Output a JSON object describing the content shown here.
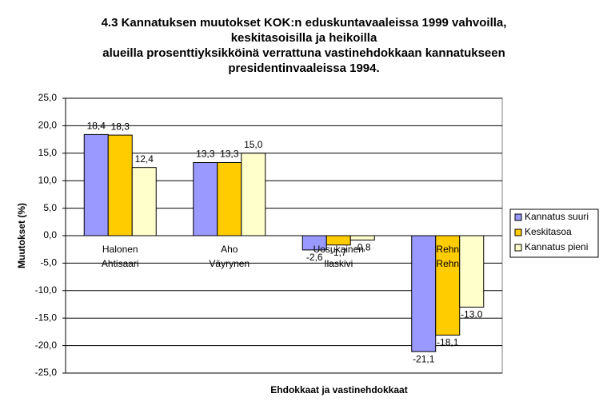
{
  "chart_data": {
    "type": "bar",
    "title": [
      "4.3 Kannatuksen muutokset KOK:n eduskuntavaaleissa 1999 vahvoilla,",
      "keskitasoisilla ja heikoilla",
      "alueilla prosenttiyksikköinä verrattuna vastinehdokkaan kannatukseen",
      "presidentinvaaleissa 1994."
    ],
    "x_label": "Ehdokkaat ja vastinehdokkaat",
    "y_label": "Muutokset (%)",
    "categories": [
      [
        "Halonen",
        "Ahtisaari"
      ],
      [
        "Aho",
        "Väyrynen"
      ],
      [
        "Uosukainen",
        "Ilaskivi"
      ],
      [
        "Rehn",
        "Rehn"
      ]
    ],
    "series": [
      {
        "name": "Kannatus suuri",
        "color": "#9999ff",
        "values": [
          18.4,
          13.3,
          -2.6,
          -21.1
        ],
        "value_labels": [
          "18,4",
          "13,3",
          "-2,6",
          "-21,1"
        ]
      },
      {
        "name": "Keskitasoa",
        "color": "#ffcc00",
        "values": [
          18.3,
          13.3,
          -1.7,
          -18.1
        ],
        "value_labels": [
          "18,3",
          "13,3",
          "-1,7",
          "-18,1"
        ]
      },
      {
        "name": "Kannatus pieni",
        "color": "#ffffcc",
        "values": [
          12.4,
          15.0,
          -0.8,
          -13.0
        ],
        "value_labels": [
          "12,4",
          "15,0",
          "-0,8",
          "-13,0"
        ]
      }
    ],
    "ylim": [
      -25,
      25
    ],
    "yticks": [
      {
        "value": -25,
        "label": "-25,0"
      },
      {
        "value": -20,
        "label": "-20,0"
      },
      {
        "value": -15,
        "label": "-15,0"
      },
      {
        "value": -10,
        "label": "-10,0"
      },
      {
        "value": -5,
        "label": "-5,0"
      },
      {
        "value": 0,
        "label": "0,0"
      },
      {
        "value": 5,
        "label": "5,0"
      },
      {
        "value": 10,
        "label": "10,0"
      },
      {
        "value": 15,
        "label": "15,0"
      },
      {
        "value": 20,
        "label": "20,0"
      },
      {
        "value": 25,
        "label": "25,0"
      }
    ],
    "grid": true,
    "legend": "right"
  }
}
